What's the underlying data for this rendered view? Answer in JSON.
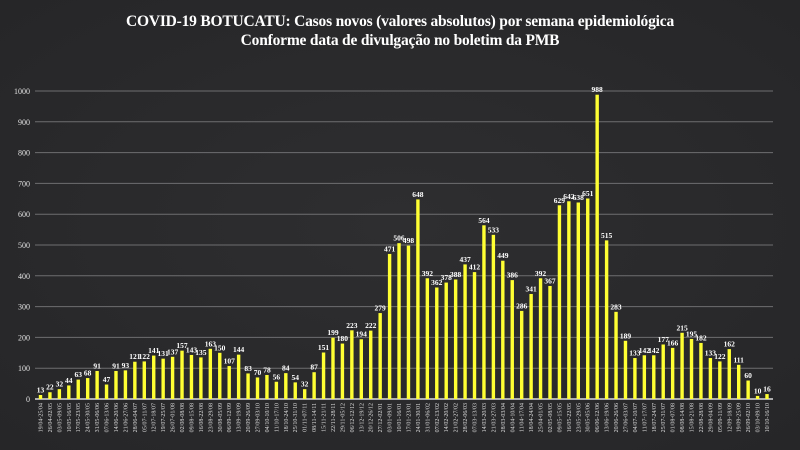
{
  "chart_data": {
    "type": "bar",
    "title": "COVID-19 BOTUCATU: Casos novos (valores absolutos) por semana epidemiológica",
    "subtitle": "Conforme data de divulgação no boletim da PMB",
    "xlabel": "",
    "ylabel": "",
    "ylim": [
      0,
      1000
    ],
    "yticks": [
      0,
      100,
      200,
      300,
      400,
      500,
      600,
      700,
      800,
      900,
      1000
    ],
    "grid": true,
    "legend": "none",
    "bar_color": "#ffff33",
    "background_color": "#2a2a2c",
    "grid_color": "#6e6e70",
    "categories": [
      "19/04-25/04",
      "26/04-02/05",
      "03/05-09/05",
      "10/05-16/05",
      "17/05-23/05",
      "24/05-30/05",
      "31/05-06/06",
      "07/06-13/06",
      "14/06-20/06",
      "21/06-27/06",
      "28/06-04/07",
      "05/07-11/07",
      "12/07-18/07",
      "19/07-25/07",
      "26/07-01/08",
      "02/08-08/08",
      "09/08-15/08",
      "16/08-22/08",
      "23/08-29/08",
      "30/08-05/09",
      "06/09-12/09",
      "13/09-19/09",
      "20/09-26/09",
      "27/09-03/10",
      "04/10-10/10",
      "11/10-17/10",
      "18/10-24/10",
      "25/10-31/10",
      "01/11-07/11",
      "08/11-14/11",
      "15/11-21/11",
      "22/11-28/11",
      "29/11-05/12",
      "06/12-12/12",
      "13/12-19/12",
      "20/12-26/12",
      "27/12-02/01",
      "03/01-09/01",
      "10/01-16/01",
      "17/01-23/01",
      "24/01-30/01",
      "31/01-06/02",
      "07/02-13/02",
      "14/02-20/02",
      "21/02-27/02",
      "28/02-06/03",
      "07/03-13/03",
      "14/03-20/03",
      "21/03-27/03",
      "28/03-03/04",
      "04/04-10/04",
      "11/04-17/04",
      "18/04-24/04",
      "25/04-01/05",
      "02/05-08/05",
      "09/05-15/05",
      "16/05-22/05",
      "23/05-29/05",
      "30/05-05/06",
      "06/06-12/06",
      "13/06-19/06",
      "20/06-26/06",
      "27/06-03/07",
      "04/07-10/07",
      "11/07-17/07",
      "18/07-24/07",
      "25/07-31/07",
      "01/08-07/08",
      "08/08-14/08",
      "15/08-21/08",
      "22/08-28/08",
      "29/08-04/09",
      "05/09-11/09",
      "12/09-18/09",
      "19/09-25/09",
      "26/09-02/10",
      "03/10-09/10",
      "10/10-16/10"
    ],
    "values": [
      13,
      22,
      32,
      44,
      63,
      68,
      91,
      47,
      91,
      93,
      121,
      122,
      141,
      131,
      137,
      157,
      143,
      135,
      163,
      150,
      107,
      144,
      83,
      70,
      78,
      56,
      84,
      54,
      32,
      87,
      151,
      199,
      180,
      223,
      194,
      222,
      279,
      471,
      506,
      498,
      648,
      392,
      362,
      378,
      388,
      437,
      412,
      564,
      533,
      449,
      386,
      286,
      341,
      392,
      367,
      629,
      642,
      638,
      651,
      988,
      515,
      283,
      189,
      133,
      142,
      142,
      177,
      166,
      215,
      195,
      182,
      133,
      122,
      162,
      111,
      60,
      10,
      16
    ]
  }
}
